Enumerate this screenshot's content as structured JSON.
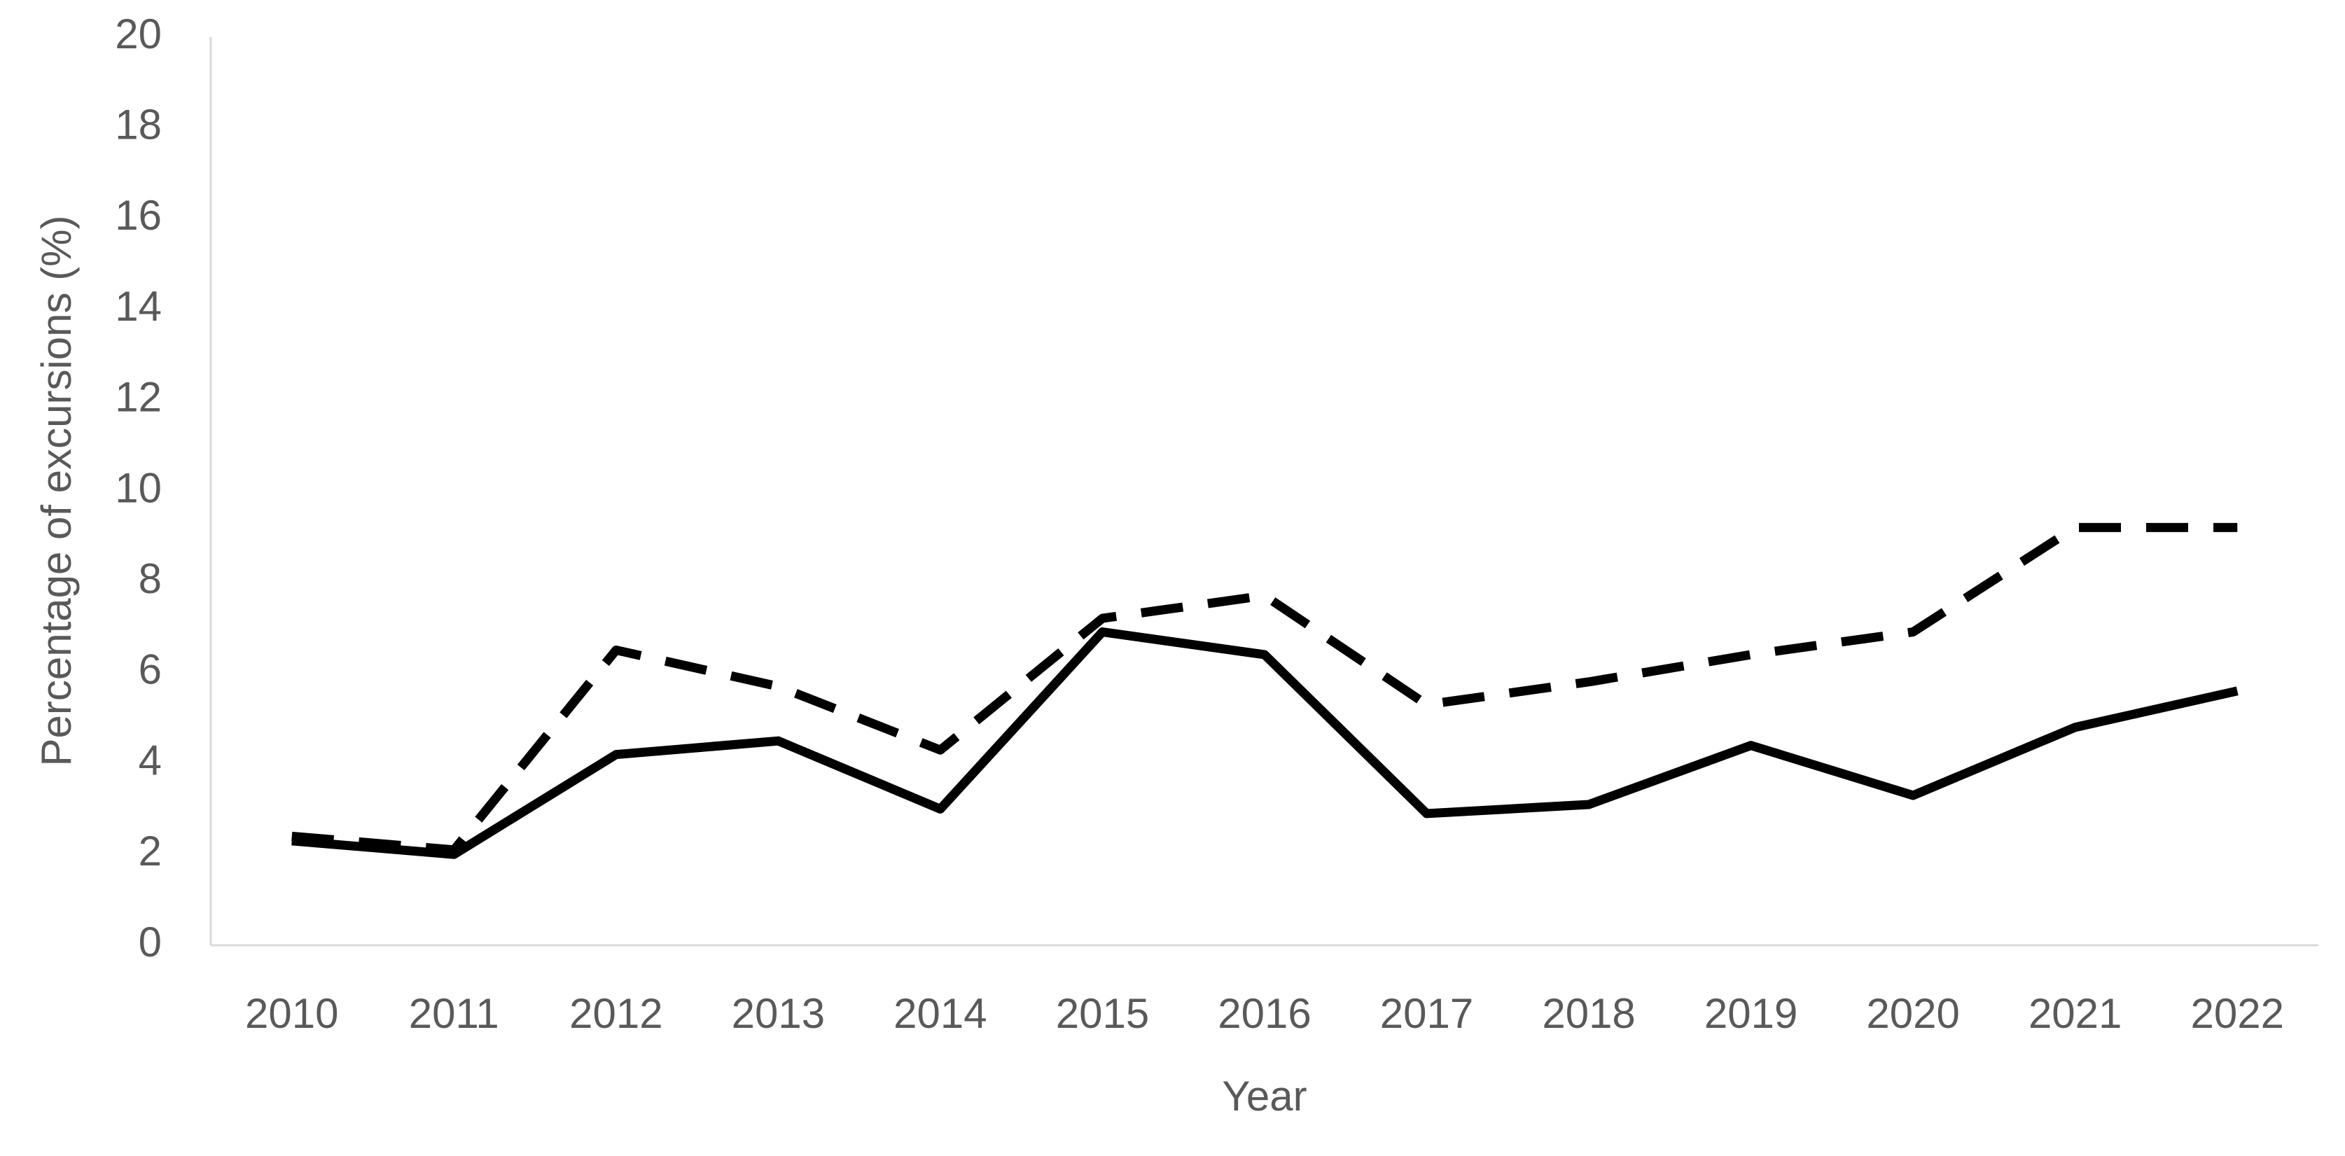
{
  "chart_data": {
    "type": "line",
    "x_label": "Year",
    "y_label": "Percentage of excursions (%)",
    "categories": [
      "2010",
      "2011",
      "2012",
      "2013",
      "2014",
      "2015",
      "2016",
      "2017",
      "2018",
      "2019",
      "2020",
      "2021",
      "2022"
    ],
    "series": [
      {
        "color": "#000000",
        "dash": false,
        "values": [
          2.3,
          2.0,
          4.2,
          4.5,
          3.0,
          6.9,
          6.4,
          2.9,
          3.1,
          4.4,
          3.3,
          4.8,
          5.6
        ]
      },
      {
        "color": "#000000",
        "dash": true,
        "values": [
          2.4,
          2.1,
          6.5,
          5.7,
          4.3,
          7.2,
          7.7,
          5.3,
          5.8,
          6.4,
          6.9,
          9.2,
          9.2
        ]
      }
    ],
    "ylim": [
      0,
      20
    ],
    "yticks": [
      0,
      2,
      4,
      6,
      8,
      10,
      12,
      14,
      16,
      18,
      20
    ],
    "grid": false
  }
}
